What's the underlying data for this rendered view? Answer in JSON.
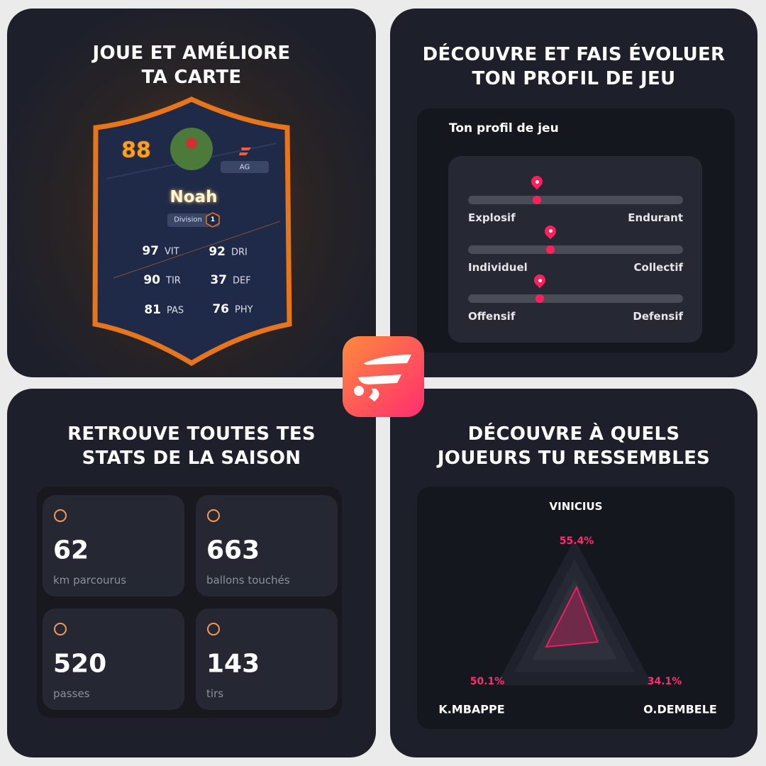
{
  "card_panel": {
    "title": [
      "JOUE ET AMÉLIORE",
      "TA CARTE"
    ],
    "rating": 88,
    "position": "AG",
    "name": "Noah",
    "division_label": "Division",
    "division": 1,
    "stats": [
      {
        "value": 97,
        "label": "VIT"
      },
      {
        "value": 92,
        "label": "DRI"
      },
      {
        "value": 90,
        "label": "TIR"
      },
      {
        "value": 37,
        "label": "DEF"
      },
      {
        "value": 81,
        "label": "PAS"
      },
      {
        "value": 76,
        "label": "PHY"
      }
    ]
  },
  "profile_panel": {
    "title": [
      "DÉCOUVRE ET FAIS ÉVOLUER",
      "TON PROFIL DE JEU"
    ],
    "heading": "Ton profil de jeu",
    "sliders": [
      {
        "left": "Explosif",
        "right": "Endurant"
      },
      {
        "left": "Individuel",
        "right": "Collectif"
      },
      {
        "left": "Offensif",
        "right": "Defensif"
      }
    ]
  },
  "stats_panel": {
    "title": [
      "RETROUVE TOUTES TES",
      "STATS DE LA SAISON"
    ],
    "tiles": [
      {
        "value": 62,
        "label": "km parcourus"
      },
      {
        "value": 663,
        "label": "ballons touchés"
      },
      {
        "value": 520,
        "label": "passes"
      },
      {
        "value": 143,
        "label": "tirs"
      }
    ]
  },
  "similar_panel": {
    "title": [
      "DÉCOUVRE À QUELS",
      "JOUEURS TU RESSEMBLES"
    ],
    "players": [
      {
        "name": "VINICIUS",
        "share": "55.4%"
      },
      {
        "name": "K.MBAPPE",
        "share": "50.1%"
      },
      {
        "name": "O.DEMBELE",
        "share": "34.1%"
      }
    ]
  }
}
